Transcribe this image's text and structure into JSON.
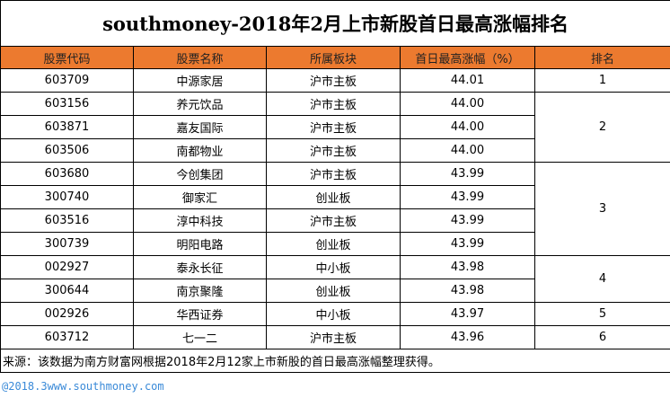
{
  "title": "southmoney-2018年2月上市新股首日最高涨幅排名",
  "columns": [
    "股票代码",
    "股票名称",
    "所属板块",
    "首日最高涨幅（%）",
    "排名"
  ],
  "rows": [
    [
      "603709",
      "中源家居",
      "沪市主板",
      "44.01",
      "1"
    ],
    [
      "603156",
      "养元饮品",
      "沪市主板",
      "44.00",
      "2"
    ],
    [
      "603871",
      "嘉友国际",
      "沪市主板",
      "44.00",
      null
    ],
    [
      "603506",
      "南都物业",
      "沪市主板",
      "44.00",
      null
    ],
    [
      "603680",
      "今创集团",
      "沪市主板",
      "43.99",
      "3"
    ],
    [
      "300740",
      "御家汇",
      "创业板",
      "43.99",
      null
    ],
    [
      "603516",
      "淳中科技",
      "沪市主板",
      "43.99",
      null
    ],
    [
      "300739",
      "明阳电路",
      "创业板",
      "43.99",
      null
    ],
    [
      "002927",
      "泰永长征",
      "中小板",
      "43.98",
      "4"
    ],
    [
      "300644",
      "南京聚隆",
      "创业板",
      "43.98",
      null
    ],
    [
      "002926",
      "华西证券",
      "中小板",
      "43.97",
      "5"
    ],
    [
      "603712",
      "七一二",
      "沪市主板",
      "43.96",
      "6"
    ]
  ],
  "note": "来源：该数据为南方财富网根据2018年2月12家上市新股的首日最高涨幅整理获得。",
  "watermark": "@2018.3www.southmoney.com"
}
